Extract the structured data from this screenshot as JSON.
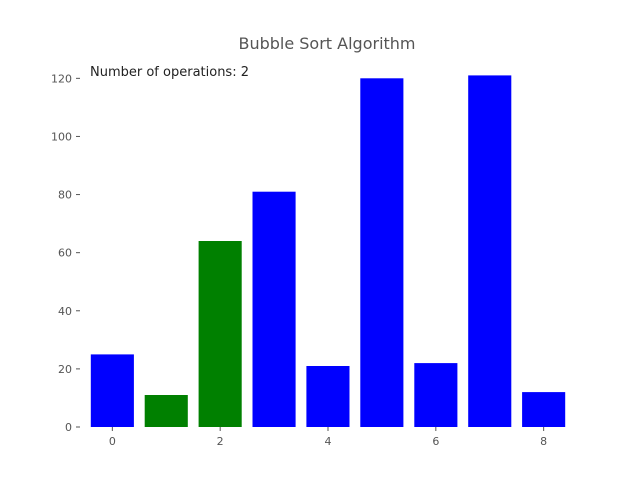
{
  "chart_data": {
    "type": "bar",
    "title": "Bubble Sort Algorithm",
    "annotation": "Number of operations: 2",
    "x": [
      0,
      1,
      2,
      3,
      4,
      5,
      6,
      7,
      8
    ],
    "values": [
      25,
      11,
      64,
      81,
      21,
      120,
      22,
      121,
      12
    ],
    "bar_colors": [
      "#0000ff",
      "#008000",
      "#008000",
      "#0000ff",
      "#0000ff",
      "#0000ff",
      "#0000ff",
      "#0000ff",
      "#0000ff"
    ],
    "highlighted_indices": [
      1,
      2
    ],
    "xticks": [
      0,
      2,
      4,
      6,
      8
    ],
    "xtick_labels": [
      "0",
      "2",
      "4",
      "6",
      "8"
    ],
    "yticks": [
      0,
      20,
      40,
      60,
      80,
      100,
      120
    ],
    "ytick_labels": [
      "0",
      "20",
      "40",
      "60",
      "80",
      "100",
      "120"
    ],
    "xlim": [
      -0.6,
      8.6
    ],
    "ylim": [
      0,
      127
    ],
    "xlabel": "",
    "ylabel": "",
    "grid": false
  }
}
